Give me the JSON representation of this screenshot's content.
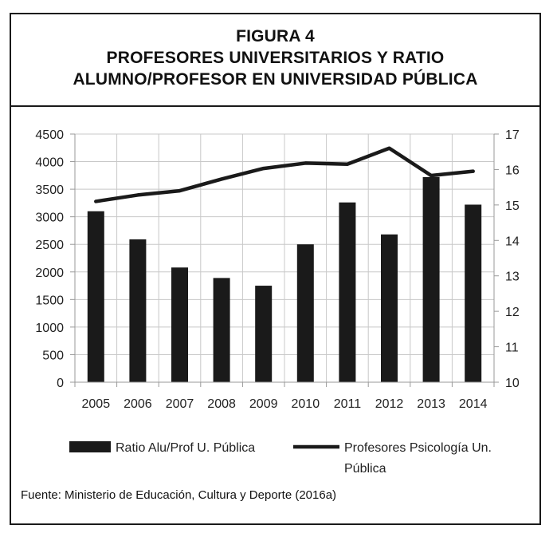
{
  "figure": {
    "label": "FIGURA 4",
    "title_line1": "PROFESORES UNIVERSITARIOS Y RATIO",
    "title_line2": "ALUMNO/PROFESOR EN UNIVERSIDAD PÚBLICA",
    "source": "Fuente: Ministerio de Educación, Cultura y Deporte (2016a)"
  },
  "chart_data": {
    "type": "bar",
    "categories": [
      "2005",
      "2006",
      "2007",
      "2008",
      "2009",
      "2010",
      "2011",
      "2012",
      "2013",
      "2014"
    ],
    "series": [
      {
        "name": "Ratio Alu/Prof U. Pública",
        "type": "bar",
        "axis": "left",
        "values": [
          3100,
          2590,
          2080,
          1890,
          1750,
          2500,
          3260,
          2680,
          3720,
          3220
        ]
      },
      {
        "name": "Profesores Psicología Un. Pública",
        "type": "line",
        "axis": "right",
        "values": [
          15.1,
          15.28,
          15.4,
          15.73,
          16.03,
          16.18,
          16.15,
          16.6,
          15.83,
          15.95
        ]
      }
    ],
    "y_left": {
      "ylim": [
        0,
        4500
      ],
      "ticks": [
        "0",
        "500",
        "1000",
        "1500",
        "2000",
        "2500",
        "3000",
        "3500",
        "4000",
        "4500"
      ]
    },
    "y_right": {
      "ylim": [
        10,
        17
      ],
      "ticks": [
        "10",
        "11",
        "12",
        "13",
        "14",
        "15",
        "16",
        "17"
      ]
    },
    "grid": true,
    "legend": {
      "placement": "bottom",
      "bar_label": "Ratio Alu/Prof U. Pública",
      "line_label_1": "Profesores Psicología Un.",
      "line_label_2": "Pública"
    },
    "colors": {
      "bar": "#1a1a1a",
      "line": "#1a1a1a",
      "grid": "#c8c8c8",
      "axis": "#999999"
    }
  }
}
